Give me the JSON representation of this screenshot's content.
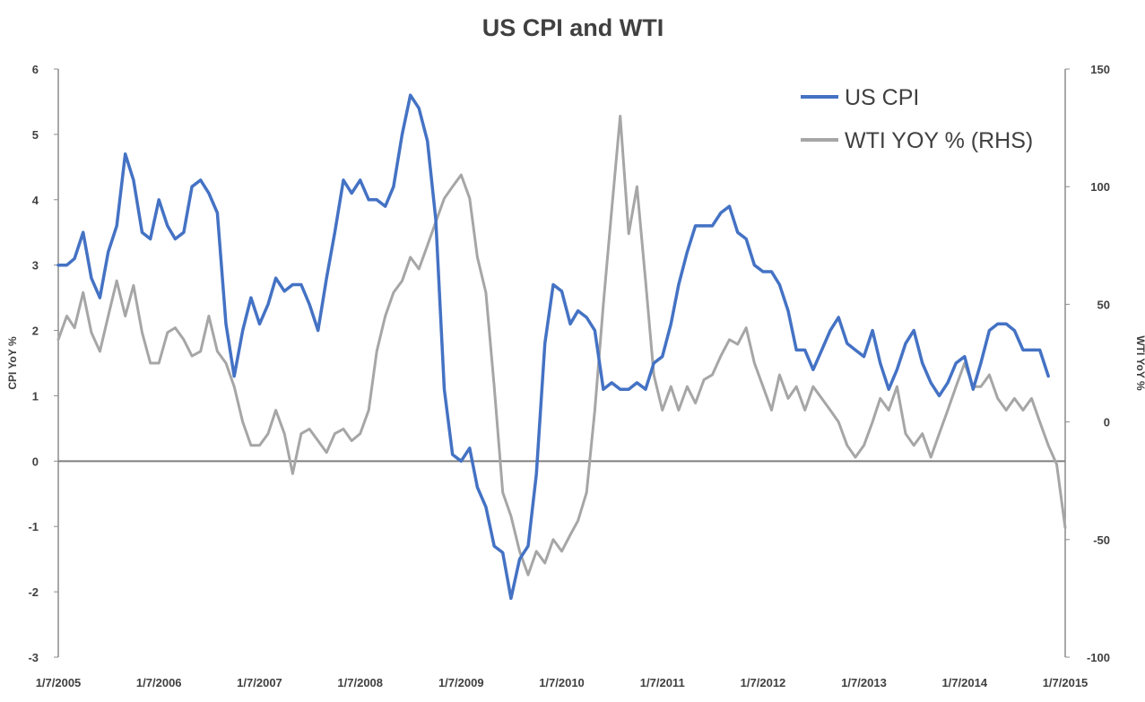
{
  "chart_data": {
    "type": "line",
    "title": "US CPI and WTI",
    "ylabel": "CPI YoY %",
    "y2label": "WTI YoY %",
    "ylim": [
      -3,
      6
    ],
    "y2lim": [
      -100,
      150
    ],
    "yticks": [
      -3,
      -2,
      -1,
      0,
      1,
      2,
      3,
      4,
      5,
      6
    ],
    "y2ticks": [
      -100,
      -50,
      0,
      50,
      100,
      150
    ],
    "xlim": [
      "2005-01-07",
      "2015-01-07"
    ],
    "xticks": [
      "1/7/2005",
      "1/7/2006",
      "1/7/2007",
      "1/7/2008",
      "1/7/2009",
      "1/7/2010",
      "1/7/2011",
      "1/7/2012",
      "1/7/2013",
      "1/7/2014",
      "1/7/2015"
    ],
    "legend_position": "top-right",
    "series": [
      {
        "name": "US CPI",
        "axis": "left",
        "color": "#4472C4",
        "points": [
          [
            "2005-01-07",
            3.0
          ],
          [
            "2005-02-07",
            3.0
          ],
          [
            "2005-03-07",
            3.1
          ],
          [
            "2005-04-07",
            3.5
          ],
          [
            "2005-05-07",
            2.8
          ],
          [
            "2005-06-07",
            2.5
          ],
          [
            "2005-07-07",
            3.2
          ],
          [
            "2005-08-07",
            3.6
          ],
          [
            "2005-09-07",
            4.7
          ],
          [
            "2005-10-07",
            4.3
          ],
          [
            "2005-11-07",
            3.5
          ],
          [
            "2005-12-07",
            3.4
          ],
          [
            "2006-01-07",
            4.0
          ],
          [
            "2006-02-07",
            3.6
          ],
          [
            "2006-03-07",
            3.4
          ],
          [
            "2006-04-07",
            3.5
          ],
          [
            "2006-05-07",
            4.2
          ],
          [
            "2006-06-07",
            4.3
          ],
          [
            "2006-07-07",
            4.1
          ],
          [
            "2006-08-07",
            3.8
          ],
          [
            "2006-09-07",
            2.1
          ],
          [
            "2006-10-07",
            1.3
          ],
          [
            "2006-11-07",
            2.0
          ],
          [
            "2006-12-07",
            2.5
          ],
          [
            "2007-01-07",
            2.1
          ],
          [
            "2007-02-07",
            2.4
          ],
          [
            "2007-03-07",
            2.8
          ],
          [
            "2007-04-07",
            2.6
          ],
          [
            "2007-05-07",
            2.7
          ],
          [
            "2007-06-07",
            2.7
          ],
          [
            "2007-07-07",
            2.4
          ],
          [
            "2007-08-07",
            2.0
          ],
          [
            "2007-09-07",
            2.8
          ],
          [
            "2007-10-07",
            3.5
          ],
          [
            "2007-11-07",
            4.3
          ],
          [
            "2007-12-07",
            4.1
          ],
          [
            "2008-01-07",
            4.3
          ],
          [
            "2008-02-07",
            4.0
          ],
          [
            "2008-03-07",
            4.0
          ],
          [
            "2008-04-07",
            3.9
          ],
          [
            "2008-05-07",
            4.2
          ],
          [
            "2008-06-07",
            5.0
          ],
          [
            "2008-07-07",
            5.6
          ],
          [
            "2008-08-07",
            5.4
          ],
          [
            "2008-09-07",
            4.9
          ],
          [
            "2008-10-07",
            3.7
          ],
          [
            "2008-11-07",
            1.1
          ],
          [
            "2008-12-07",
            0.1
          ],
          [
            "2009-01-07",
            0.0
          ],
          [
            "2009-02-07",
            0.2
          ],
          [
            "2009-03-07",
            -0.4
          ],
          [
            "2009-04-07",
            -0.7
          ],
          [
            "2009-05-07",
            -1.3
          ],
          [
            "2009-06-07",
            -1.4
          ],
          [
            "2009-07-07",
            -2.1
          ],
          [
            "2009-08-07",
            -1.5
          ],
          [
            "2009-09-07",
            -1.3
          ],
          [
            "2009-10-07",
            -0.2
          ],
          [
            "2009-11-07",
            1.8
          ],
          [
            "2009-12-07",
            2.7
          ],
          [
            "2010-01-07",
            2.6
          ],
          [
            "2010-02-07",
            2.1
          ],
          [
            "2010-03-07",
            2.3
          ],
          [
            "2010-04-07",
            2.2
          ],
          [
            "2010-05-07",
            2.0
          ],
          [
            "2010-06-07",
            1.1
          ],
          [
            "2010-07-07",
            1.2
          ],
          [
            "2010-08-07",
            1.1
          ],
          [
            "2010-09-07",
            1.1
          ],
          [
            "2010-10-07",
            1.2
          ],
          [
            "2010-11-07",
            1.1
          ],
          [
            "2010-12-07",
            1.5
          ],
          [
            "2011-01-07",
            1.6
          ],
          [
            "2011-02-07",
            2.1
          ],
          [
            "2011-03-07",
            2.7
          ],
          [
            "2011-04-07",
            3.2
          ],
          [
            "2011-05-07",
            3.6
          ],
          [
            "2011-06-07",
            3.6
          ],
          [
            "2011-07-07",
            3.6
          ],
          [
            "2011-08-07",
            3.8
          ],
          [
            "2011-09-07",
            3.9
          ],
          [
            "2011-10-07",
            3.5
          ],
          [
            "2011-11-07",
            3.4
          ],
          [
            "2011-12-07",
            3.0
          ],
          [
            "2012-01-07",
            2.9
          ],
          [
            "2012-02-07",
            2.9
          ],
          [
            "2012-03-07",
            2.7
          ],
          [
            "2012-04-07",
            2.3
          ],
          [
            "2012-05-07",
            1.7
          ],
          [
            "2012-06-07",
            1.7
          ],
          [
            "2012-07-07",
            1.4
          ],
          [
            "2012-08-07",
            1.7
          ],
          [
            "2012-09-07",
            2.0
          ],
          [
            "2012-10-07",
            2.2
          ],
          [
            "2012-11-07",
            1.8
          ],
          [
            "2012-12-07",
            1.7
          ],
          [
            "2013-01-07",
            1.6
          ],
          [
            "2013-02-07",
            2.0
          ],
          [
            "2013-03-07",
            1.5
          ],
          [
            "2013-04-07",
            1.1
          ],
          [
            "2013-05-07",
            1.4
          ],
          [
            "2013-06-07",
            1.8
          ],
          [
            "2013-07-07",
            2.0
          ],
          [
            "2013-08-07",
            1.5
          ],
          [
            "2013-09-07",
            1.2
          ],
          [
            "2013-10-07",
            1.0
          ],
          [
            "2013-11-07",
            1.2
          ],
          [
            "2013-12-07",
            1.5
          ],
          [
            "2014-01-07",
            1.6
          ],
          [
            "2014-02-07",
            1.1
          ],
          [
            "2014-03-07",
            1.5
          ],
          [
            "2014-04-07",
            2.0
          ],
          [
            "2014-05-07",
            2.1
          ],
          [
            "2014-06-07",
            2.1
          ],
          [
            "2014-07-07",
            2.0
          ],
          [
            "2014-08-07",
            1.7
          ],
          [
            "2014-09-07",
            1.7
          ],
          [
            "2014-10-07",
            1.7
          ],
          [
            "2014-11-07",
            1.3
          ]
        ]
      },
      {
        "name": "WTI YOY % (RHS)",
        "axis": "right",
        "color": "#A6A6A6",
        "points": [
          [
            "2005-01-07",
            35
          ],
          [
            "2005-02-07",
            45
          ],
          [
            "2005-03-07",
            40
          ],
          [
            "2005-04-07",
            55
          ],
          [
            "2005-05-07",
            38
          ],
          [
            "2005-06-07",
            30
          ],
          [
            "2005-07-07",
            45
          ],
          [
            "2005-08-07",
            60
          ],
          [
            "2005-09-07",
            45
          ],
          [
            "2005-10-07",
            58
          ],
          [
            "2005-11-07",
            38
          ],
          [
            "2005-12-07",
            25
          ],
          [
            "2006-01-07",
            25
          ],
          [
            "2006-02-07",
            38
          ],
          [
            "2006-03-07",
            40
          ],
          [
            "2006-04-07",
            35
          ],
          [
            "2006-05-07",
            28
          ],
          [
            "2006-06-07",
            30
          ],
          [
            "2006-07-07",
            45
          ],
          [
            "2006-08-07",
            30
          ],
          [
            "2006-09-07",
            25
          ],
          [
            "2006-10-07",
            15
          ],
          [
            "2006-11-07",
            0
          ],
          [
            "2006-12-07",
            -10
          ],
          [
            "2007-01-07",
            -10
          ],
          [
            "2007-02-07",
            -5
          ],
          [
            "2007-03-07",
            5
          ],
          [
            "2007-04-07",
            -5
          ],
          [
            "2007-05-07",
            -22
          ],
          [
            "2007-06-07",
            -5
          ],
          [
            "2007-07-07",
            -3
          ],
          [
            "2007-08-07",
            -8
          ],
          [
            "2007-09-07",
            -13
          ],
          [
            "2007-10-07",
            -5
          ],
          [
            "2007-11-07",
            -3
          ],
          [
            "2007-12-07",
            -8
          ],
          [
            "2008-01-07",
            -5
          ],
          [
            "2008-02-07",
            5
          ],
          [
            "2008-03-07",
            30
          ],
          [
            "2008-04-07",
            45
          ],
          [
            "2008-05-07",
            55
          ],
          [
            "2008-06-07",
            60
          ],
          [
            "2008-07-07",
            70
          ],
          [
            "2008-08-07",
            65
          ],
          [
            "2008-09-07",
            75
          ],
          [
            "2008-10-07",
            85
          ],
          [
            "2008-11-07",
            95
          ],
          [
            "2008-12-07",
            100
          ],
          [
            "2009-01-07",
            105
          ],
          [
            "2009-02-07",
            95
          ],
          [
            "2009-03-07",
            70
          ],
          [
            "2009-04-07",
            55
          ],
          [
            "2009-05-07",
            15
          ],
          [
            "2009-06-07",
            -30
          ],
          [
            "2009-07-07",
            -40
          ],
          [
            "2009-08-07",
            -55
          ],
          [
            "2009-09-07",
            -65
          ],
          [
            "2009-10-07",
            -55
          ],
          [
            "2009-11-07",
            -60
          ],
          [
            "2009-12-07",
            -50
          ],
          [
            "2010-01-07",
            -55
          ],
          [
            "2010-02-07",
            -48
          ],
          [
            "2010-03-07",
            -42
          ],
          [
            "2010-04-07",
            -30
          ],
          [
            "2010-05-07",
            5
          ],
          [
            "2010-06-07",
            50
          ],
          [
            "2010-07-07",
            90
          ],
          [
            "2010-08-07",
            130
          ],
          [
            "2010-09-07",
            80
          ],
          [
            "2010-10-07",
            100
          ],
          [
            "2010-11-07",
            60
          ],
          [
            "2010-12-07",
            20
          ],
          [
            "2011-01-07",
            5
          ],
          [
            "2011-02-07",
            15
          ],
          [
            "2011-03-07",
            5
          ],
          [
            "2011-04-07",
            15
          ],
          [
            "2011-05-07",
            8
          ],
          [
            "2011-06-07",
            18
          ],
          [
            "2011-07-07",
            20
          ],
          [
            "2011-08-07",
            28
          ],
          [
            "2011-09-07",
            35
          ],
          [
            "2011-10-07",
            33
          ],
          [
            "2011-11-07",
            40
          ],
          [
            "2011-12-07",
            25
          ],
          [
            "2012-01-07",
            15
          ],
          [
            "2012-02-07",
            5
          ],
          [
            "2012-03-07",
            20
          ],
          [
            "2012-04-07",
            10
          ],
          [
            "2012-05-07",
            15
          ],
          [
            "2012-06-07",
            5
          ],
          [
            "2012-07-07",
            15
          ],
          [
            "2012-08-07",
            10
          ],
          [
            "2012-09-07",
            5
          ],
          [
            "2012-10-07",
            0
          ],
          [
            "2012-11-07",
            -10
          ],
          [
            "2012-12-07",
            -15
          ],
          [
            "2013-01-07",
            -10
          ],
          [
            "2013-02-07",
            0
          ],
          [
            "2013-03-07",
            10
          ],
          [
            "2013-04-07",
            5
          ],
          [
            "2013-05-07",
            15
          ],
          [
            "2013-06-07",
            -5
          ],
          [
            "2013-07-07",
            -10
          ],
          [
            "2013-08-07",
            -5
          ],
          [
            "2013-09-07",
            -15
          ],
          [
            "2013-10-07",
            -5
          ],
          [
            "2013-11-07",
            5
          ],
          [
            "2013-12-07",
            15
          ],
          [
            "2014-01-07",
            25
          ],
          [
            "2014-02-07",
            15
          ],
          [
            "2014-03-07",
            15
          ],
          [
            "2014-04-07",
            20
          ],
          [
            "2014-05-07",
            10
          ],
          [
            "2014-06-07",
            5
          ],
          [
            "2014-07-07",
            10
          ],
          [
            "2014-08-07",
            5
          ],
          [
            "2014-09-07",
            10
          ],
          [
            "2014-10-07",
            0
          ],
          [
            "2014-11-07",
            -10
          ],
          [
            "2014-12-07",
            -18
          ],
          [
            "2015-01-07",
            -45
          ]
        ]
      }
    ]
  }
}
